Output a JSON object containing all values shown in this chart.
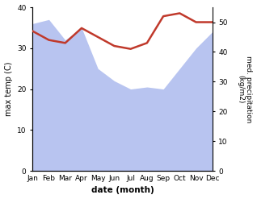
{
  "months": [
    "Jan",
    "Feb",
    "Mar",
    "Apr",
    "May",
    "Jun",
    "Jul",
    "Aug",
    "Sep",
    "Oct",
    "Nov",
    "Dec"
  ],
  "x": [
    0,
    1,
    2,
    3,
    4,
    5,
    6,
    7,
    8,
    9,
    10,
    11
  ],
  "temp": [
    36,
    37,
    32,
    35,
    25,
    22,
    20,
    20.5,
    20,
    25,
    30,
    34
  ],
  "precip": [
    47,
    44,
    43,
    48,
    45,
    42,
    41,
    43,
    52,
    53,
    50,
    50
  ],
  "line_color": "#c0392b",
  "fill_color": "#b8c4f0",
  "ylabel_left": "max temp (C)",
  "ylabel_right": "med. precipitation\n(kg/m2)",
  "xlabel": "date (month)",
  "ylim_left": [
    0,
    40
  ],
  "ylim_right": [
    0,
    55
  ],
  "yticks_left": [
    0,
    10,
    20,
    30,
    40
  ],
  "yticks_right": [
    0,
    10,
    20,
    30,
    40,
    50
  ],
  "bg_color": "#ffffff"
}
